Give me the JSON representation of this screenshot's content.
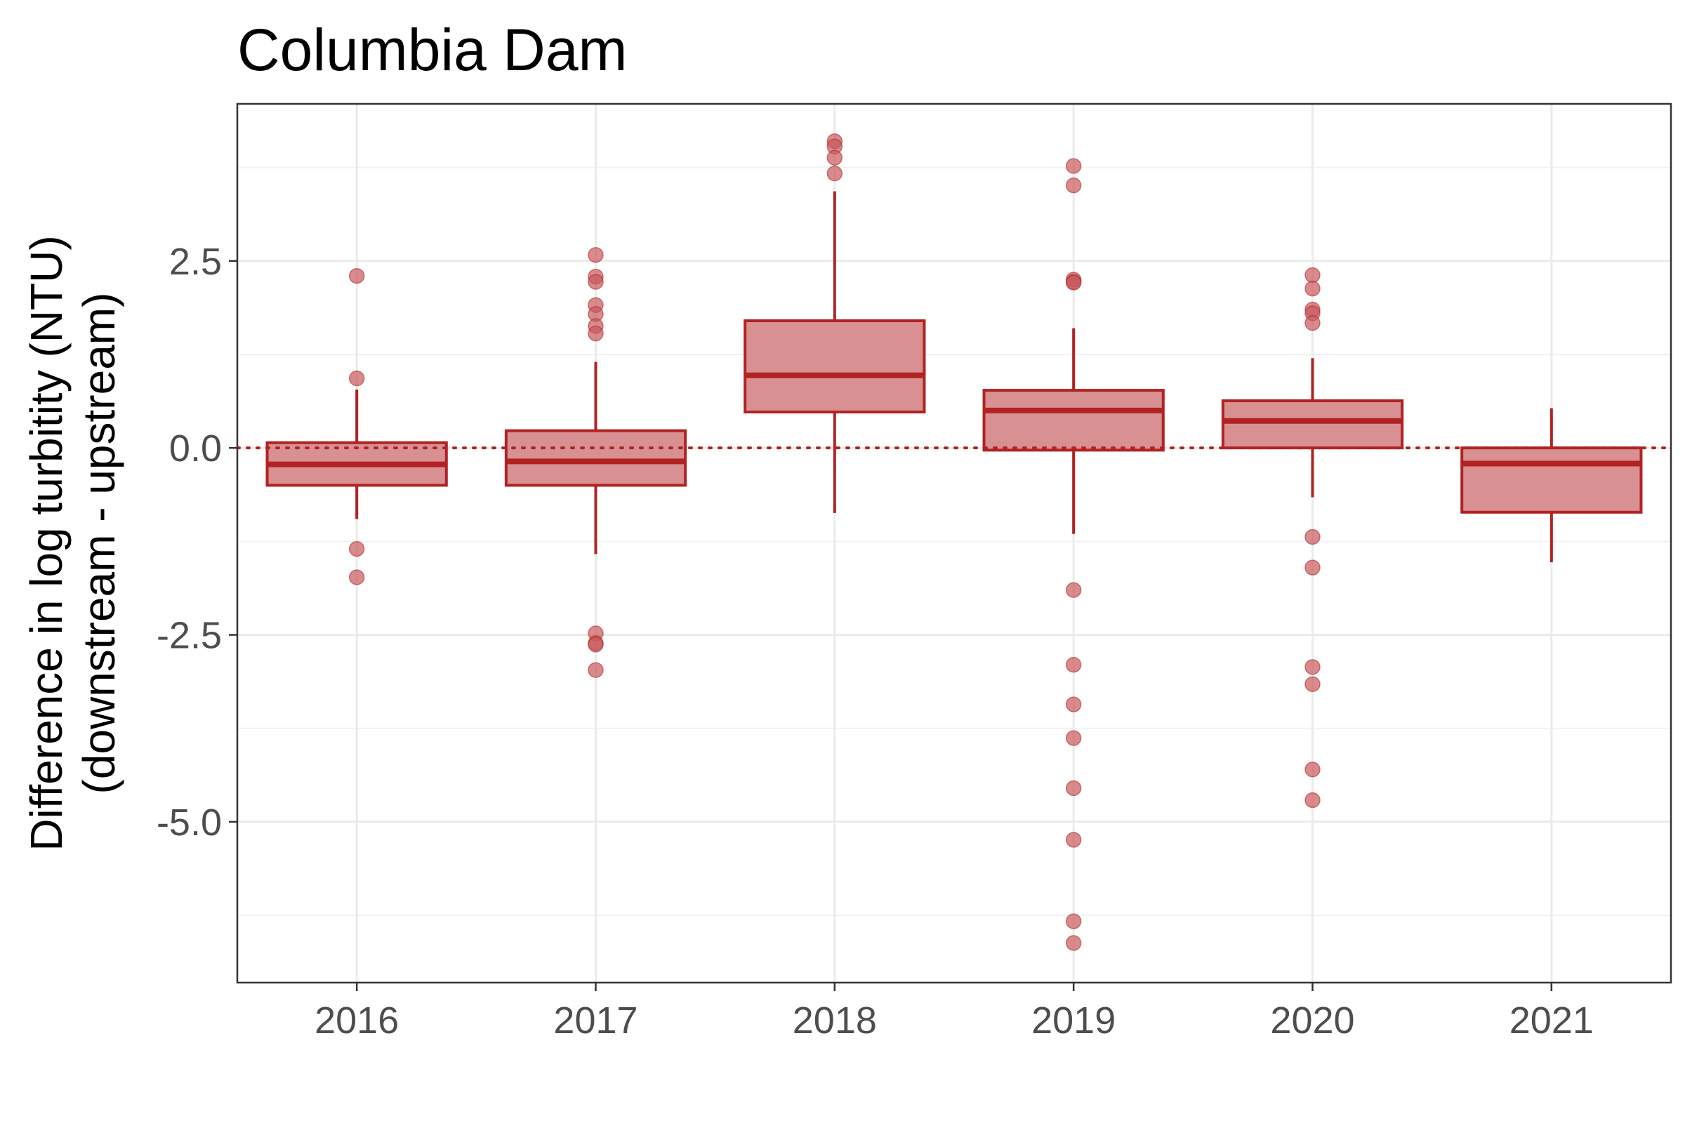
{
  "chart_data": {
    "type": "box",
    "title": "Columbia Dam",
    "ylabel_line1": "Difference in log turbitity (NTU)",
    "ylabel_line2": "(downstream - upstream)",
    "xlabel": "",
    "categories": [
      "2016",
      "2017",
      "2018",
      "2019",
      "2020",
      "2021"
    ],
    "ylim": [
      -7.15,
      4.6
    ],
    "yticks": [
      2.5,
      0.0,
      -2.5,
      -5.0
    ],
    "ytick_labels": [
      "2.5",
      "0.0",
      "-2.5",
      "-5.0"
    ],
    "reference_line": 0,
    "grid": true,
    "boxes": [
      {
        "q1": -0.5,
        "median": -0.22,
        "q3": 0.07,
        "whisker_low": -0.95,
        "whisker_high": 0.78,
        "outliers": [
          2.3,
          0.93,
          -1.35,
          -1.73
        ]
      },
      {
        "q1": -0.5,
        "median": -0.18,
        "q3": 0.23,
        "whisker_low": -1.42,
        "whisker_high": 1.15,
        "outliers": [
          2.58,
          2.29,
          2.22,
          1.91,
          1.79,
          1.63,
          1.53,
          -2.48,
          -2.61,
          -2.63,
          -2.97
        ]
      },
      {
        "q1": 0.48,
        "median": 0.97,
        "q3": 1.7,
        "whisker_low": -0.87,
        "whisker_high": 3.43,
        "outliers": [
          4.1,
          4.03,
          3.88,
          3.67
        ]
      },
      {
        "q1": -0.03,
        "median": 0.5,
        "q3": 0.77,
        "whisker_low": -1.15,
        "whisker_high": 1.6,
        "outliers": [
          3.77,
          3.51,
          2.25,
          2.22,
          2.21,
          -1.9,
          -2.9,
          -3.43,
          -3.88,
          -4.55,
          -5.24,
          -6.33,
          -6.62
        ]
      },
      {
        "q1": 0.0,
        "median": 0.36,
        "q3": 0.63,
        "whisker_low": -0.66,
        "whisker_high": 1.2,
        "outliers": [
          2.31,
          2.13,
          1.85,
          1.8,
          1.67,
          -1.19,
          -1.6,
          -2.93,
          -3.16,
          -4.3,
          -4.71
        ]
      },
      {
        "q1": -0.86,
        "median": -0.21,
        "q3": 0.0,
        "whisker_low": -1.53,
        "whisker_high": 0.53,
        "outliers": []
      }
    ],
    "colors": {
      "box_fill": "#d89092",
      "line": "#b22222",
      "point": "#c8595c",
      "grid_major": "#ebebeb",
      "grid_minor": "#f2f2f2",
      "border": "#333333"
    }
  }
}
